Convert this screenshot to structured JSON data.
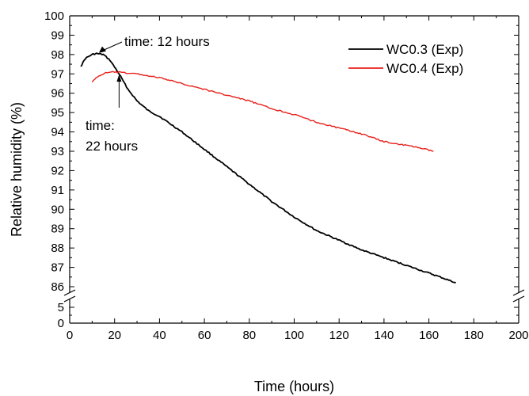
{
  "chart_data": {
    "type": "line",
    "xlabel": "Time (hours)",
    "ylabel": "Relative humidity (%)",
    "xlim": [
      0,
      200
    ],
    "ylim_upper": [
      86,
      100
    ],
    "ylim_lower": [
      0,
      6
    ],
    "axis_break": true,
    "x_ticks": [
      "0",
      "20",
      "40",
      "60",
      "80",
      "100",
      "120",
      "140",
      "160",
      "180",
      "200"
    ],
    "y_ticks_upper": [
      "86",
      "87",
      "88",
      "89",
      "90",
      "91",
      "92",
      "93",
      "94",
      "95",
      "96",
      "97",
      "98",
      "99",
      "100"
    ],
    "y_ticks_lower": [
      "0",
      "5"
    ],
    "legend_position": "top-right",
    "grid": false,
    "series": [
      {
        "name": "WC0.3 (Exp)",
        "color": "#000000",
        "x": [
          5,
          7,
          10,
          12,
          15,
          18,
          22,
          26,
          30,
          35,
          40,
          50,
          60,
          70,
          80,
          90,
          100,
          110,
          120,
          130,
          140,
          150,
          160,
          165,
          172
        ],
        "y": [
          97.4,
          97.8,
          98.0,
          98.05,
          98.0,
          97.7,
          97.0,
          96.2,
          95.6,
          95.1,
          94.8,
          94.0,
          93.1,
          92.2,
          91.3,
          90.4,
          89.6,
          88.9,
          88.4,
          87.9,
          87.5,
          87.1,
          86.7,
          86.5,
          86.2
        ]
      },
      {
        "name": "WC0.4 (Exp)",
        "color": "#e8201b",
        "x": [
          10,
          13,
          16,
          20,
          25,
          30,
          40,
          50,
          60,
          70,
          80,
          90,
          100,
          110,
          120,
          130,
          140,
          150,
          155,
          162
        ],
        "y": [
          96.6,
          96.9,
          97.05,
          97.1,
          97.05,
          97.0,
          96.8,
          96.5,
          96.2,
          95.9,
          95.6,
          95.2,
          94.9,
          94.5,
          94.2,
          93.9,
          93.5,
          93.3,
          93.2,
          93.0
        ]
      }
    ],
    "annotations": [
      {
        "lines": [
          "time: 12 hours"
        ],
        "x": 12,
        "y": 98.05
      },
      {
        "lines": [
          "time:",
          "22 hours"
        ],
        "x": 22,
        "y": 97.05
      }
    ]
  }
}
